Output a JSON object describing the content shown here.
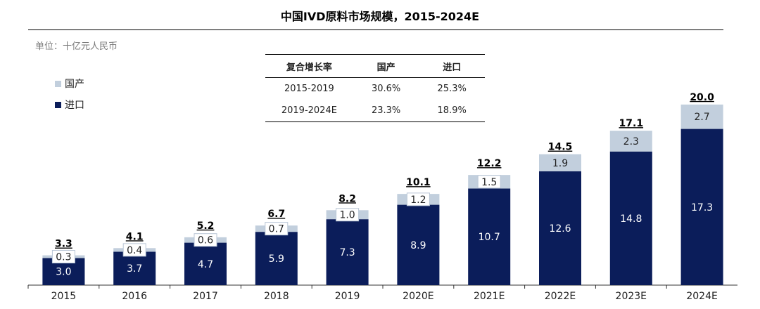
{
  "title": "中国IVD原料市场规模，2015-2024E",
  "unit_label": "单位：十亿元人民币",
  "legend": [
    {
      "label": "国产",
      "color": "#c2cfdd"
    },
    {
      "label": "进口",
      "color": "#0b1d5a"
    }
  ],
  "cagr_table": {
    "headers": [
      "复合增长率",
      "国产",
      "进口"
    ],
    "rows": [
      [
        "2015-2019",
        "30.6%",
        "25.3%"
      ],
      [
        "2019-2024E",
        "23.3%",
        "18.9%"
      ]
    ]
  },
  "chart_data": {
    "type": "bar",
    "stacked": true,
    "categories": [
      "2015",
      "2016",
      "2017",
      "2018",
      "2019",
      "2020E",
      "2021E",
      "2022E",
      "2023E",
      "2024E"
    ],
    "series": [
      {
        "name": "进口",
        "color": "#0b1d5a",
        "values": [
          3.0,
          3.7,
          4.7,
          5.9,
          7.3,
          8.9,
          10.7,
          12.6,
          14.8,
          17.3
        ]
      },
      {
        "name": "国产",
        "color": "#c2cfdd",
        "values": [
          0.3,
          0.4,
          0.6,
          0.7,
          1.0,
          1.2,
          1.5,
          1.9,
          2.3,
          2.7
        ]
      }
    ],
    "totals": [
      "3.3",
      "4.1",
      "5.2",
      "6.7",
      "8.2",
      "10.1",
      "12.2",
      "14.5",
      "17.1",
      "20.0"
    ],
    "ylim": [
      0,
      21
    ]
  }
}
